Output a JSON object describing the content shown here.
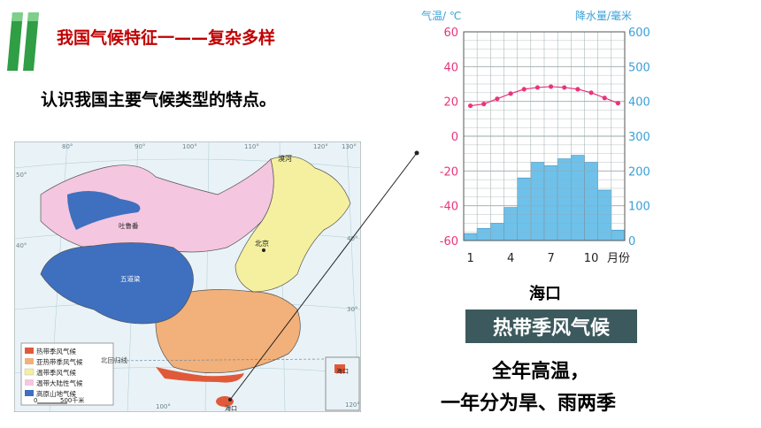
{
  "slide": {
    "title": "我国气候特征一——复杂多样",
    "subtitle": "认识我国主要气候类型的特点。",
    "caption": "海口",
    "climate_type": "热带季风气候",
    "desc_line1": "全年高温，",
    "desc_line2": "一年分为旱、雨两季"
  },
  "map": {
    "legend": [
      "热带季风气候",
      "亚热带季风气候",
      "温带季风气候",
      "温带大陆性气候",
      "高原山地气候"
    ],
    "legend_colors": [
      "#e05a3a",
      "#f2b07a",
      "#f5f0a0",
      "#f4c6e0",
      "#3f6fbf"
    ],
    "labels": {
      "beijing": "北京",
      "mohe": "漠河",
      "tulufan": "吐鲁番",
      "wudaoliang": "五道梁",
      "haikou": "海口",
      "tropic": "北回归线",
      "scale_zero": "0",
      "scale": "500千米",
      "lon80": "80°",
      "lon90": "90°",
      "lon100": "100°",
      "lon110": "110°",
      "lon120": "120°",
      "lon130": "130°",
      "lat50": "50°",
      "lat40": "40°",
      "lat30": "30°",
      "lat20": "20°"
    }
  },
  "chart_data": {
    "type": "bar+line",
    "title": "",
    "left_axis_label": "气温/ ℃",
    "right_axis_label": "降水量/毫米",
    "x_label": "月份",
    "months": [
      1,
      2,
      3,
      4,
      5,
      6,
      7,
      8,
      9,
      10,
      11,
      12
    ],
    "x_tick_labels": [
      "1",
      "4",
      "7",
      "10"
    ],
    "temp_ylim": [
      -60,
      60
    ],
    "temp_ticks": [
      "60",
      "40",
      "20",
      "0",
      "-20",
      "-40",
      "-60"
    ],
    "precip_ylim": [
      0,
      600
    ],
    "precip_ticks": [
      "600",
      "500",
      "400",
      "300",
      "200",
      "100",
      "0"
    ],
    "temperature": [
      17.5,
      18.5,
      21.5,
      24.5,
      27,
      28,
      28.5,
      28,
      27,
      25,
      22,
      19
    ],
    "precipitation": [
      20,
      35,
      50,
      95,
      180,
      225,
      215,
      235,
      245,
      225,
      145,
      30
    ],
    "bar_color": "#6ec1ea",
    "line_color": "#e8357a"
  }
}
